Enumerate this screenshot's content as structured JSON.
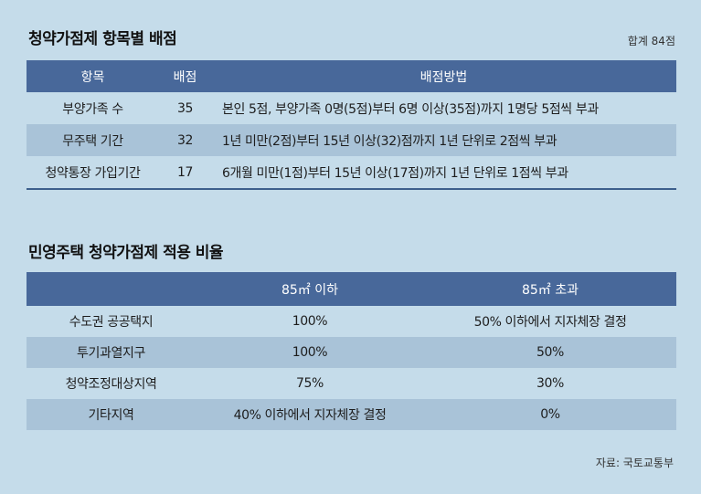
{
  "score_table": {
    "title": "청약가점제 항목별 배점",
    "total": "합계 84점",
    "headers": [
      "항목",
      "배점",
      "배점방법"
    ],
    "rows": [
      {
        "item": "부양가족 수",
        "score": "35",
        "method": "본인 5점, 부양가족 0명(5점)부터 6명 이상(35점)까지 1명당 5점씩 부과"
      },
      {
        "item": "무주택 기간",
        "score": "32",
        "method": "1년 미만(2점)부터 15년 이상(32)점까지 1년 단위로 2점씩 부과"
      },
      {
        "item": "청약통장 가입기간",
        "score": "17",
        "method": "6개월 미만(1점)부터 15년 이상(17점)까지 1년 단위로 1점씩 부과"
      }
    ]
  },
  "ratio_table": {
    "title": "민영주택 청약가점제 적용 비율",
    "headers": [
      "",
      "85㎡ 이하",
      "85㎡ 초과"
    ],
    "rows": [
      {
        "region": "수도권 공공택지",
        "under85": "100%",
        "over85": "50% 이하에서 지자체장 결정"
      },
      {
        "region": "투기과열지구",
        "under85": "100%",
        "over85": "50%"
      },
      {
        "region": "청약조정대상지역",
        "under85": "75%",
        "over85": "30%"
      },
      {
        "region": "기타지역",
        "under85": "40% 이하에서 지자체장 결정",
        "over85": "0%"
      }
    ]
  },
  "source": "자료: 국토교통부",
  "colors": {
    "background": "#c5dcea",
    "header": "#48689a",
    "row_shade": "#a9c3d8"
  }
}
